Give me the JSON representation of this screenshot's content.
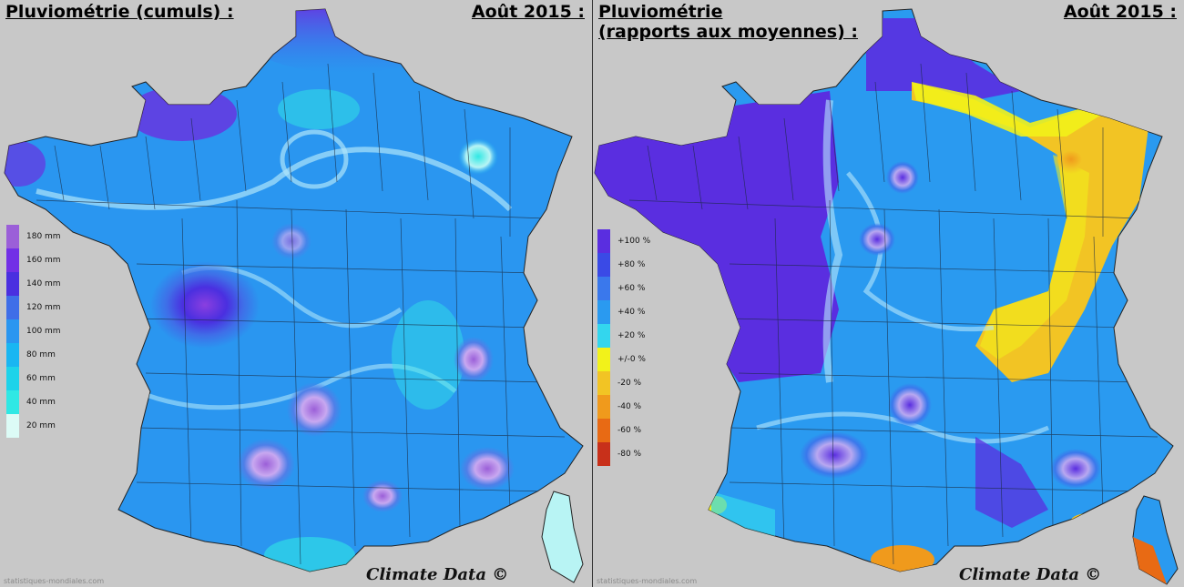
{
  "left_panel": {
    "title": "Pluviométrie (cumuls) :",
    "date": "Août 2015 :",
    "credit": "Climate Data ©",
    "source": "statistiques-mondiales.com",
    "legend": [
      {
        "label": "180 mm",
        "color": "#9b5fd8"
      },
      {
        "label": "160 mm",
        "color": "#7230e6"
      },
      {
        "label": "140 mm",
        "color": "#4a2fe0"
      },
      {
        "label": "120 mm",
        "color": "#3f6ee8"
      },
      {
        "label": "100 mm",
        "color": "#2a96f0"
      },
      {
        "label": "80 mm",
        "color": "#19b6f2"
      },
      {
        "label": "60 mm",
        "color": "#1ed3ea"
      },
      {
        "label": "40 mm",
        "color": "#30e8e4"
      },
      {
        "label": "20 mm",
        "color": "#dcfbf6"
      }
    ]
  },
  "right_panel": {
    "title_line1": "Pluviométrie",
    "title_line2": "(rapports aux moyennes) :",
    "date": "Août 2015 :",
    "credit": "Climate Data ©",
    "source": "statistiques-mondiales.com",
    "legend": [
      {
        "label": "+100 %",
        "color": "#5a2ee0"
      },
      {
        "label": "+80 %",
        "color": "#3a4ae6"
      },
      {
        "label": "+60 %",
        "color": "#3a78ec"
      },
      {
        "label": "+40 %",
        "color": "#2a9af0"
      },
      {
        "label": "+20 %",
        "color": "#33d6ee"
      },
      {
        "label": "+/-0 %",
        "color": "#f2f21a"
      },
      {
        "label": "-20 %",
        "color": "#f2c424"
      },
      {
        "label": "-40 %",
        "color": "#f09a1c"
      },
      {
        "label": "-60 %",
        "color": "#e86a14"
      },
      {
        "label": "-80 %",
        "color": "#c8301a"
      }
    ]
  }
}
